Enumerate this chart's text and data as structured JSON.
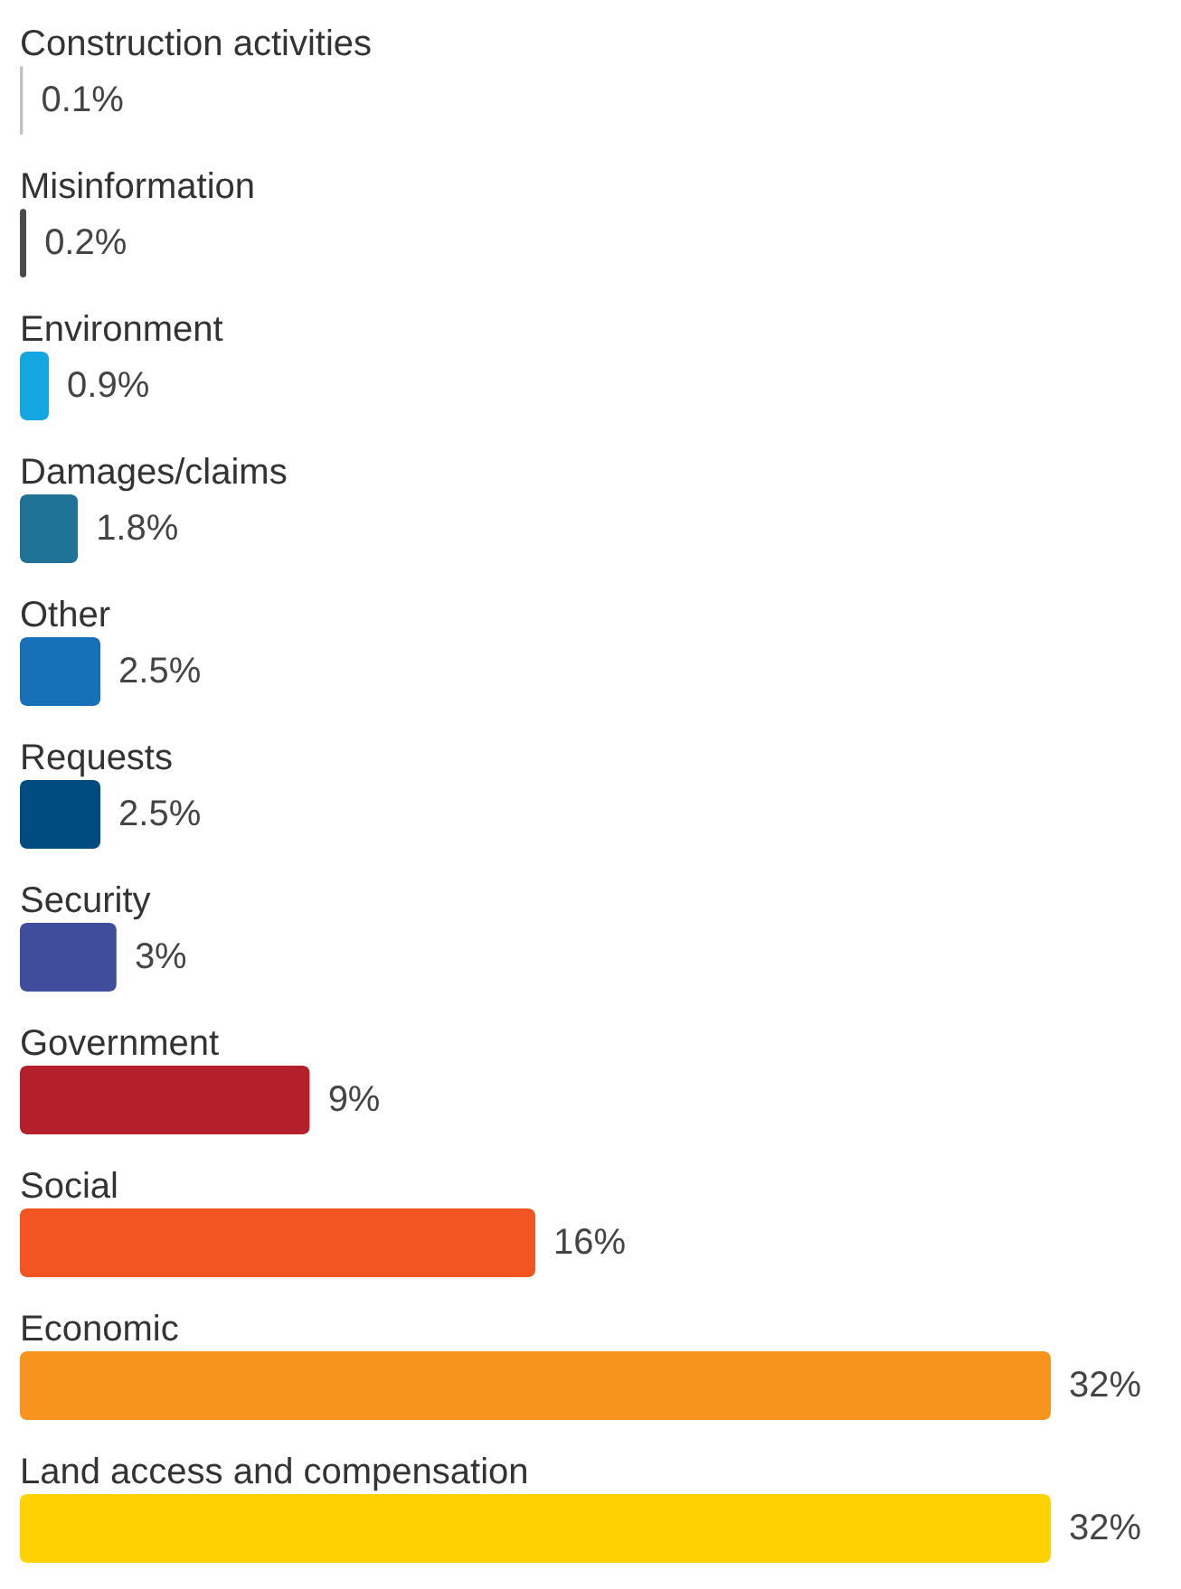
{
  "chart_data": {
    "type": "bar",
    "orientation": "horizontal",
    "categories": [
      "Construction activities",
      "Misinformation",
      "Environment",
      "Damages/claims",
      "Other",
      "Requests",
      "Security",
      "Government",
      "Social",
      "Economic",
      "Land access and compensation"
    ],
    "values": [
      0.1,
      0.2,
      0.9,
      1.8,
      2.5,
      2.5,
      3,
      9,
      16,
      32,
      32
    ],
    "value_labels": [
      "0.1%",
      "0.2%",
      "0.9%",
      "1.8%",
      "2.5%",
      "2.5%",
      "3%",
      "9%",
      "16%",
      "32%",
      "32%"
    ],
    "colors": [
      "#c0c0c0",
      "#4a4a4a",
      "#14a6e0",
      "#1f7396",
      "#1570b8",
      "#004b80",
      "#3e4d9c",
      "#b3202a",
      "#f05522",
      "#f7941d",
      "#ffd200"
    ]
  }
}
